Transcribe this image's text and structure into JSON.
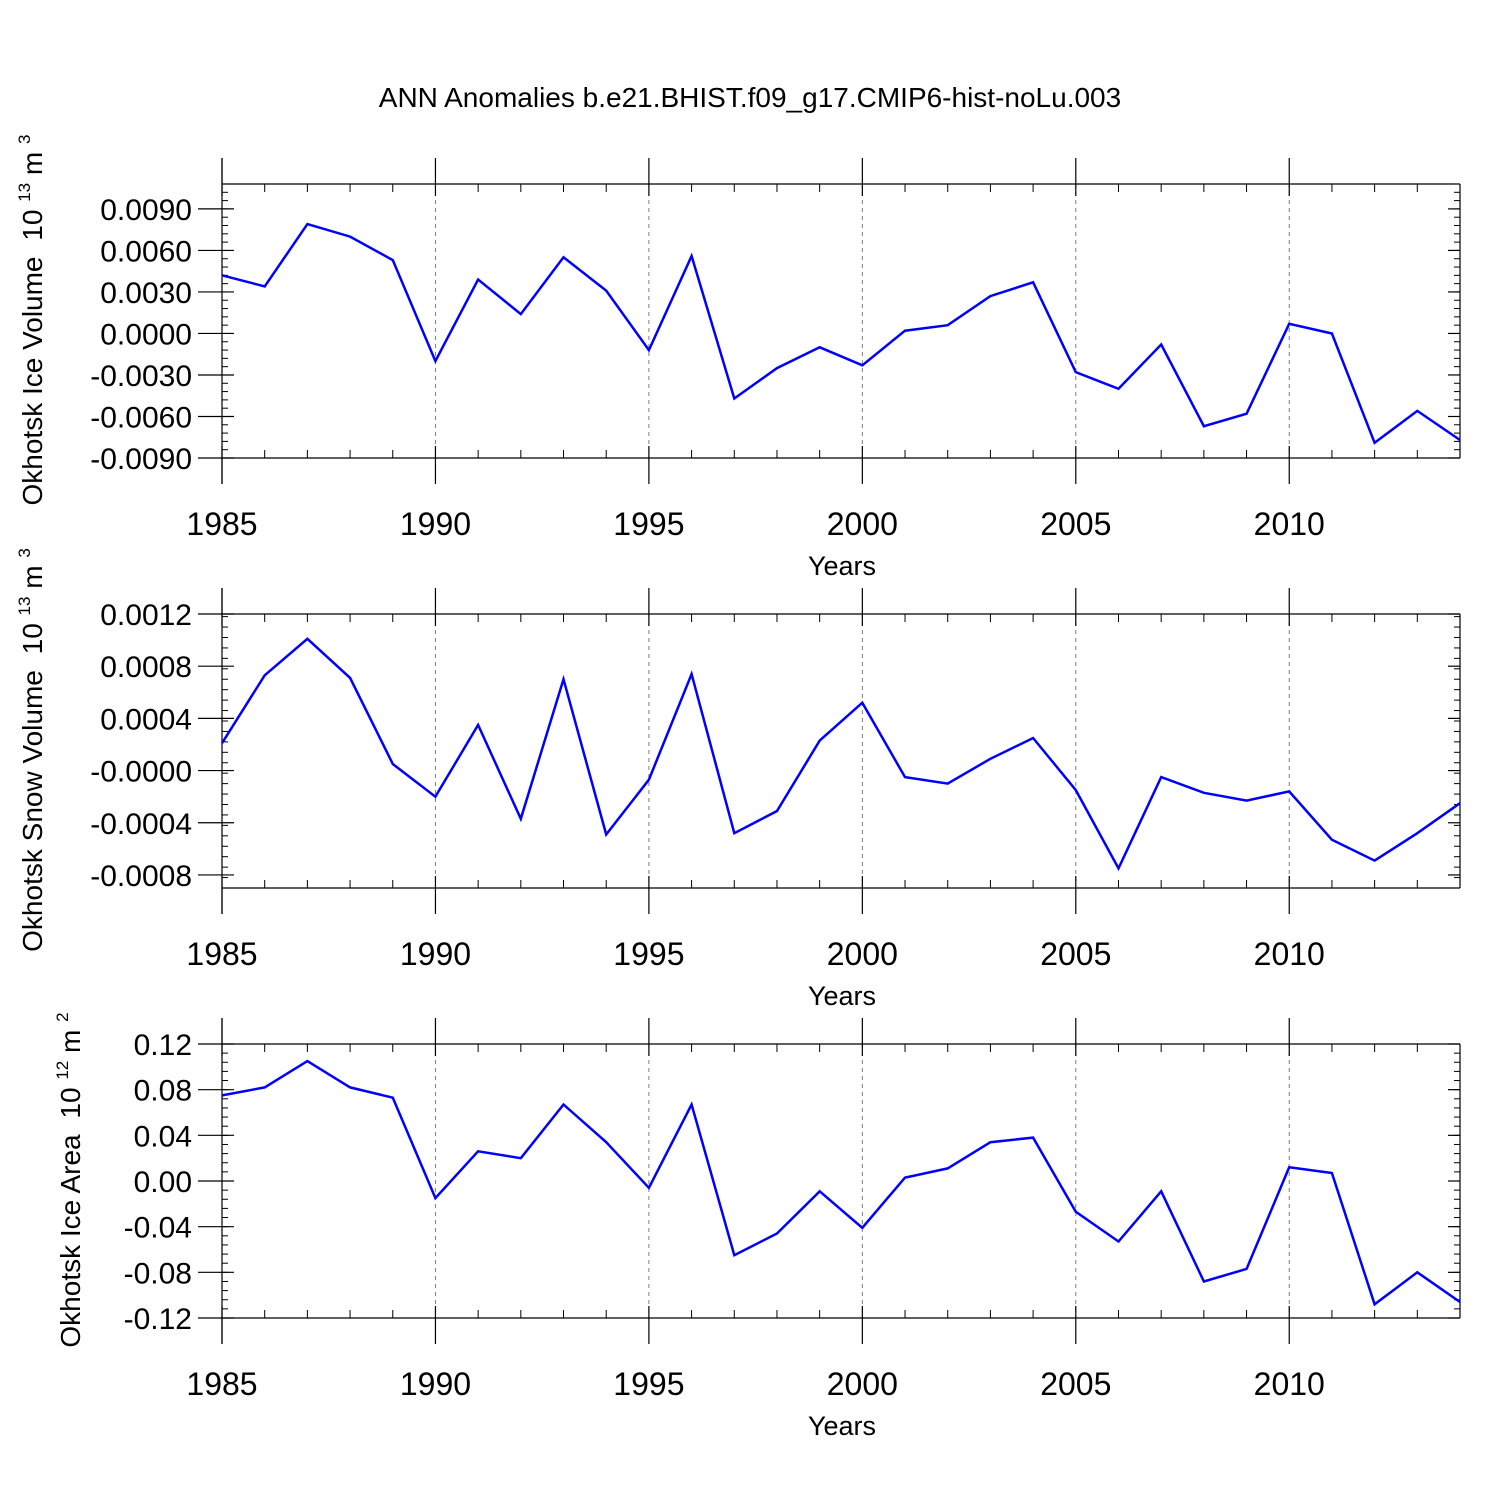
{
  "figure": {
    "title": "ANN Anomalies b.e21.BHIST.f09_g17.CMIP6-hist-noLu.003",
    "line_color": "#0000ff",
    "grid_color": "#808080"
  },
  "chart_data": [
    {
      "type": "line",
      "title": "",
      "xlabel": "Years",
      "ylabel": "Okhotsk Ice Volume",
      "ylabel_unit_base": "10",
      "ylabel_unit_exp": "13",
      "ylabel_unit_suffix": " m",
      "ylabel_unit_suffix_exp": "3",
      "xlim": [
        1985,
        2014
      ],
      "ylim": [
        -0.009,
        0.0108
      ],
      "xticks": [
        1985,
        1990,
        1995,
        2000,
        2005,
        2010
      ],
      "xtick_labels": [
        "1985",
        "1990",
        "1995",
        "2000",
        "2005",
        "2010"
      ],
      "yticks": [
        -0.009,
        -0.006,
        -0.003,
        0.0,
        0.003,
        0.006,
        0.009
      ],
      "ytick_labels": [
        "-0.0090",
        "-0.0060",
        "-0.0030",
        "0.0000",
        "0.0030",
        "0.0060",
        "0.0090"
      ],
      "grid": "vertical dashed at major x ticks",
      "series": [
        {
          "x": [
            1985,
            1986,
            1987,
            1988,
            1989,
            1990,
            1991,
            1992,
            1993,
            1994,
            1995,
            1996,
            1997,
            1998,
            1999,
            2000,
            2001,
            2002,
            2003,
            2004,
            2005,
            2006,
            2007,
            2008,
            2009,
            2010,
            2011,
            2012,
            2013,
            2014
          ],
          "values": [
            0.0042,
            0.0034,
            0.0079,
            0.007,
            0.0053,
            -0.002,
            0.0039,
            0.0014,
            0.0055,
            0.0031,
            -0.0012,
            0.0056,
            -0.0047,
            -0.0025,
            -0.001,
            -0.0023,
            0.0002,
            0.0006,
            0.0027,
            0.0037,
            -0.0028,
            -0.004,
            -0.0008,
            -0.0067,
            -0.0058,
            0.0007,
            0.0,
            -0.0079,
            -0.0056,
            -0.0077
          ]
        }
      ]
    },
    {
      "type": "line",
      "title": "",
      "xlabel": "Years",
      "ylabel": "Okhotsk Snow Volume",
      "ylabel_unit_base": "10",
      "ylabel_unit_exp": "13",
      "ylabel_unit_suffix": " m",
      "ylabel_unit_suffix_exp": "3",
      "xlim": [
        1985,
        2014
      ],
      "ylim": [
        -0.0009,
        0.0012
      ],
      "xticks": [
        1985,
        1990,
        1995,
        2000,
        2005,
        2010
      ],
      "xtick_labels": [
        "1985",
        "1990",
        "1995",
        "2000",
        "2005",
        "2010"
      ],
      "yticks": [
        -0.0008,
        -0.0004,
        0.0,
        0.0004,
        0.0008,
        0.0012
      ],
      "ytick_labels": [
        "-0.0008",
        "-0.0004",
        "-0.0000",
        "0.0004",
        "0.0008",
        "0.0012"
      ],
      "grid": "vertical dashed at major x ticks",
      "series": [
        {
          "x": [
            1985,
            1986,
            1987,
            1988,
            1989,
            1990,
            1991,
            1992,
            1993,
            1994,
            1995,
            1996,
            1997,
            1998,
            1999,
            2000,
            2001,
            2002,
            2003,
            2004,
            2005,
            2006,
            2007,
            2008,
            2009,
            2010,
            2011,
            2012,
            2013,
            2014
          ],
          "values": [
            0.00021,
            0.00073,
            0.00101,
            0.00071,
            5e-05,
            -0.0002,
            0.00035,
            -0.00037,
            0.0007,
            -0.00049,
            -7e-05,
            0.00074,
            -0.00048,
            -0.00031,
            0.00023,
            0.00052,
            -5e-05,
            -0.0001,
            9e-05,
            0.00025,
            -0.00015,
            -0.00075,
            -5e-05,
            -0.00017,
            -0.00023,
            -0.00016,
            -0.00053,
            -0.00069,
            -0.00048,
            -0.00025
          ]
        }
      ]
    },
    {
      "type": "line",
      "title": "",
      "xlabel": "Years",
      "ylabel": "Okhotsk Ice Area",
      "ylabel_unit_base": "10",
      "ylabel_unit_exp": "12",
      "ylabel_unit_suffix": " m",
      "ylabel_unit_suffix_exp": "2",
      "xlim": [
        1985,
        2014
      ],
      "ylim": [
        -0.12,
        0.12
      ],
      "xticks": [
        1985,
        1990,
        1995,
        2000,
        2005,
        2010
      ],
      "xtick_labels": [
        "1985",
        "1990",
        "1995",
        "2000",
        "2005",
        "2010"
      ],
      "yticks": [
        -0.12,
        -0.08,
        -0.04,
        0.0,
        0.04,
        0.08,
        0.12
      ],
      "ytick_labels": [
        "-0.12",
        "-0.08",
        "-0.04",
        "0.00",
        "0.04",
        "0.08",
        "0.12"
      ],
      "grid": "vertical dashed at major x ticks",
      "series": [
        {
          "x": [
            1985,
            1986,
            1987,
            1988,
            1989,
            1990,
            1991,
            1992,
            1993,
            1994,
            1995,
            1996,
            1997,
            1998,
            1999,
            2000,
            2001,
            2002,
            2003,
            2004,
            2005,
            2006,
            2007,
            2008,
            2009,
            2010,
            2011,
            2012,
            2013,
            2014
          ],
          "values": [
            0.075,
            0.082,
            0.105,
            0.082,
            0.073,
            -0.015,
            0.026,
            0.02,
            0.067,
            0.034,
            -0.006,
            0.067,
            -0.065,
            -0.046,
            -0.009,
            -0.041,
            0.003,
            0.011,
            0.034,
            0.038,
            -0.027,
            -0.053,
            -0.009,
            -0.088,
            -0.077,
            0.012,
            0.007,
            -0.108,
            -0.08,
            -0.106
          ]
        }
      ]
    }
  ]
}
